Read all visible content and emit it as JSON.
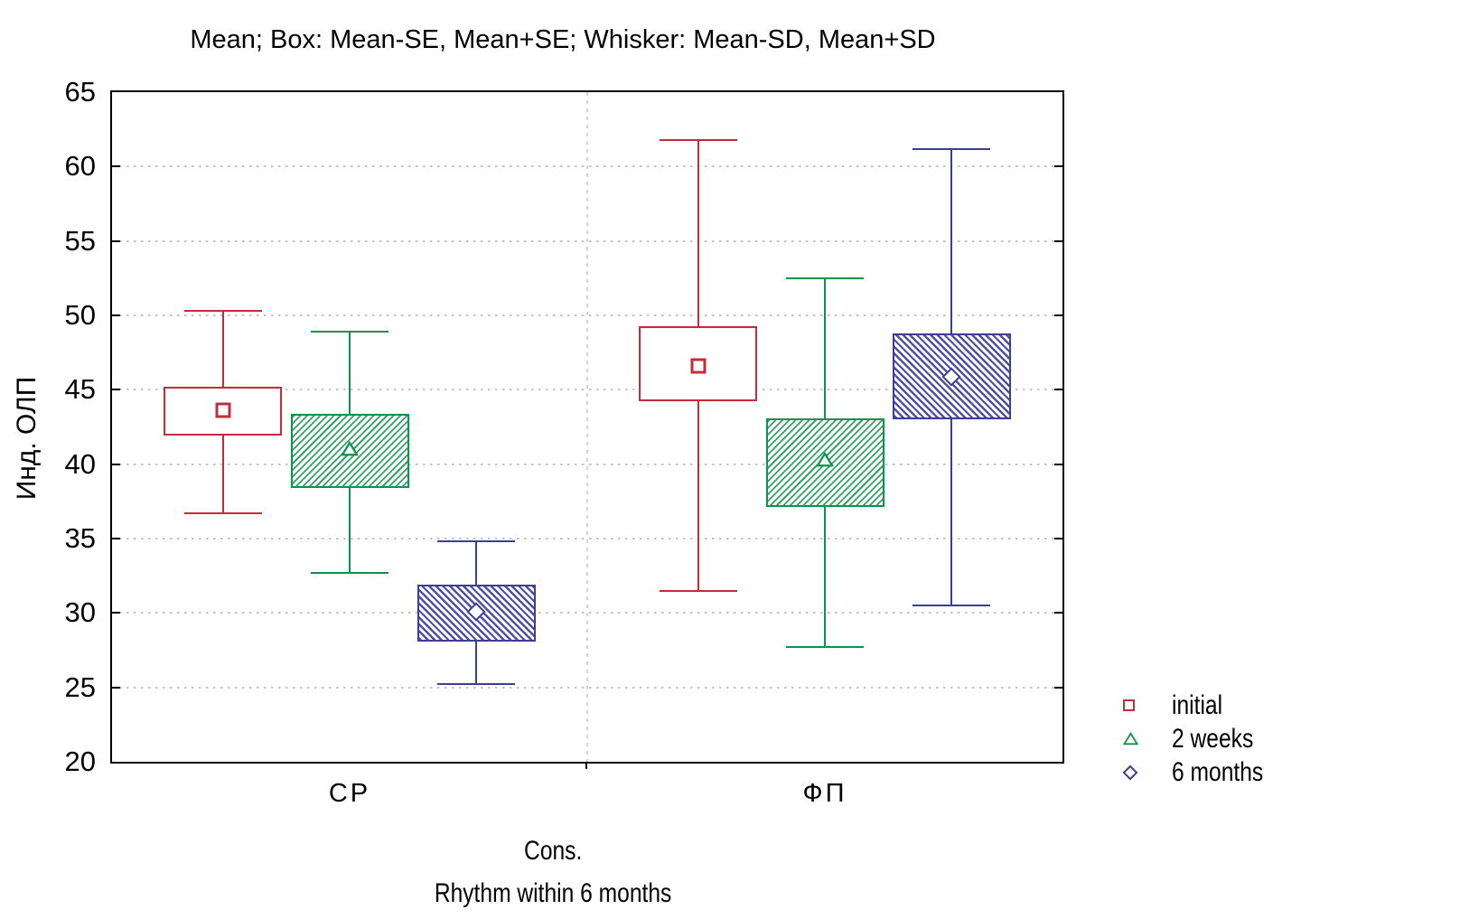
{
  "title": "Mean; Box: Mean-SE, Mean+SE; Whisker: Mean-SD, Mean+SD",
  "y_axis": {
    "label": "Инд. ОЛП",
    "ticks": [
      65,
      60,
      55,
      50,
      45,
      40,
      35,
      30,
      25,
      20
    ]
  },
  "x_axis": {
    "group_labels": [
      "СР",
      "ФП"
    ],
    "title_line1": "Cons.",
    "title_line2": "Rhythm within 6 months"
  },
  "legend": {
    "items": [
      {
        "label": "initial",
        "marker": "square",
        "color": "#c22d3a"
      },
      {
        "label": "2 weeks",
        "marker": "triangle",
        "color": "#11924b"
      },
      {
        "label": "6 months",
        "marker": "diamond",
        "color": "#3d3d94"
      }
    ]
  },
  "chart_data": {
    "type": "box",
    "title": "Mean; Box: Mean-SE, Mean+SE; Whisker: Mean-SD, Mean+SD",
    "ylabel": "Инд. ОЛП",
    "xlabel": "Cons. Rhythm within 6 months",
    "ylim": [
      20,
      65
    ],
    "ytick_step": 5,
    "grid": "horizontal-dotted",
    "legend_position": "bottom-right",
    "categories": [
      "СР",
      "ФП"
    ],
    "series": [
      {
        "name": "initial",
        "color": "#c22d3a",
        "marker": "square",
        "hatch": "none",
        "points": [
          {
            "category": "СР",
            "mean": 43.6,
            "box_low": 41.9,
            "box_high": 45.2,
            "whisker_low": 36.7,
            "whisker_high": 50.3
          },
          {
            "category": "ФП",
            "mean": 46.6,
            "box_low": 44.2,
            "box_high": 49.3,
            "whisker_low": 31.5,
            "whisker_high": 61.8
          }
        ]
      },
      {
        "name": "2 weeks",
        "color": "#11924b",
        "marker": "triangle",
        "hatch": "diagonal-up",
        "points": [
          {
            "category": "СР",
            "mean": 40.8,
            "box_low": 38.4,
            "box_high": 43.4,
            "whisker_low": 32.7,
            "whisker_high": 48.9
          },
          {
            "category": "ФП",
            "mean": 40.1,
            "box_low": 37.1,
            "box_high": 43.1,
            "whisker_low": 27.7,
            "whisker_high": 52.5
          }
        ]
      },
      {
        "name": "6 months",
        "color": "#3d3d94",
        "marker": "diamond",
        "hatch": "diagonal-down",
        "points": [
          {
            "category": "СР",
            "mean": 30.1,
            "box_low": 28.1,
            "box_high": 31.9,
            "whisker_low": 25.2,
            "whisker_high": 34.8
          },
          {
            "category": "ФП",
            "mean": 45.9,
            "box_low": 43.0,
            "box_high": 48.8,
            "whisker_low": 30.5,
            "whisker_high": 61.2
          }
        ]
      }
    ]
  }
}
